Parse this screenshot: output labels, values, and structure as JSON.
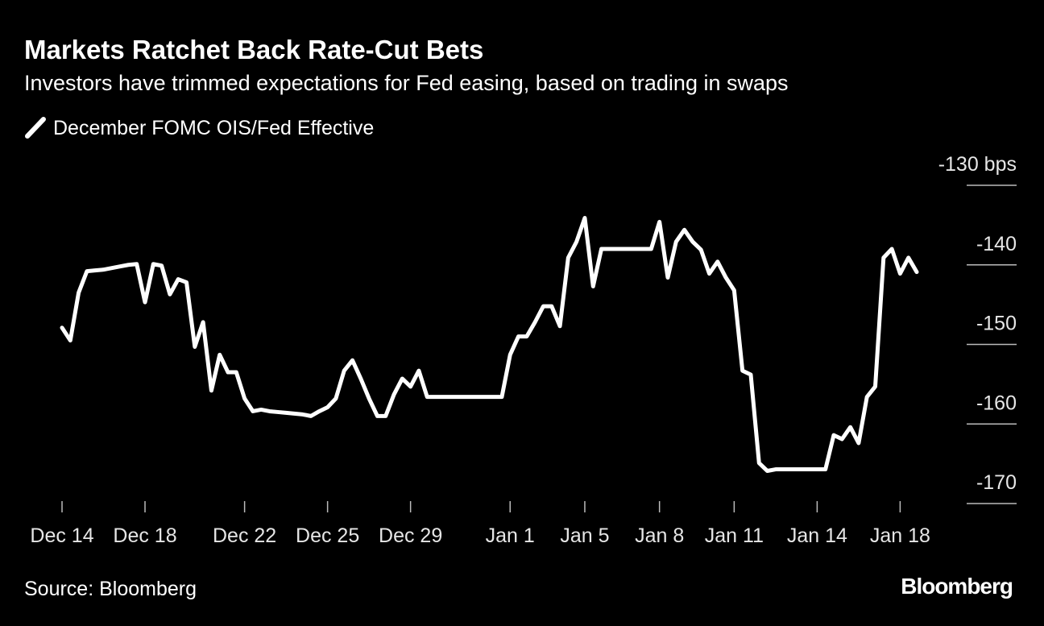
{
  "chart_data": {
    "type": "line",
    "title": "Markets Ratchet Back Rate-Cut Bets",
    "subtitle": "Investors have trimmed expectations for Fed easing, based on trading in swaps",
    "source": "Source: Bloomberg",
    "brand": "Bloomberg",
    "categories": [
      "Dec 14",
      null,
      null,
      null,
      null,
      null,
      null,
      null,
      null,
      null,
      "Dec 18",
      null,
      null,
      null,
      null,
      null,
      null,
      null,
      null,
      null,
      null,
      null,
      "Dec 22",
      null,
      null,
      null,
      null,
      null,
      null,
      null,
      null,
      null,
      "Dec 25",
      null,
      null,
      null,
      null,
      null,
      null,
      null,
      null,
      null,
      "Dec 29",
      null,
      null,
      null,
      null,
      null,
      null,
      null,
      null,
      null,
      null,
      null,
      "Jan 1",
      null,
      null,
      null,
      null,
      null,
      null,
      null,
      null,
      "Jan 5",
      null,
      null,
      null,
      null,
      null,
      null,
      null,
      null,
      "Jan 8",
      null,
      null,
      null,
      null,
      null,
      null,
      null,
      null,
      "Jan 11",
      null,
      null,
      null,
      null,
      null,
      null,
      null,
      null,
      null,
      "Jan 14",
      null,
      null,
      null,
      null,
      null,
      null,
      null,
      null,
      null,
      "Jan 18",
      null,
      null
    ],
    "series": [
      {
        "name": "December FOMC OIS/Fed Effective",
        "color": "#ffffff",
        "values": [
          -147.9,
          -149.5,
          -143.5,
          -140.8,
          -140.7,
          -140.6,
          -140.4,
          -140.2,
          -140.0,
          -139.9,
          -144.7,
          -139.9,
          -140.1,
          -143.7,
          -141.8,
          -142.2,
          -150.3,
          -147.2,
          -155.8,
          -151.3,
          -153.5,
          -153.5,
          -156.8,
          -158.4,
          -158.2,
          -158.4,
          -158.5,
          -158.6,
          -158.7,
          -158.8,
          -159.0,
          -158.4,
          -157.9,
          -156.8,
          -153.3,
          -152.0,
          -154.3,
          -156.8,
          -159.0,
          -159.0,
          -156.3,
          -154.3,
          -155.3,
          -153.3,
          -156.6,
          -156.6,
          -156.6,
          -156.6,
          -156.6,
          -156.6,
          -156.6,
          -156.6,
          -156.6,
          -156.6,
          -151.3,
          -149.0,
          -149.0,
          -147.2,
          -145.2,
          -145.2,
          -147.7,
          -139.1,
          -137.1,
          -134.1,
          -142.7,
          -138.0,
          -138.0,
          -138.0,
          -138.0,
          -138.0,
          -138.0,
          -138.0,
          -134.6,
          -141.6,
          -137.1,
          -135.6,
          -137.1,
          -138.1,
          -141.1,
          -139.6,
          -141.6,
          -143.2,
          -153.3,
          -153.8,
          -164.9,
          -165.9,
          -165.7,
          -165.7,
          -165.7,
          -165.7,
          -165.7,
          -165.7,
          -165.7,
          -161.4,
          -161.9,
          -160.4,
          -162.4,
          -156.6,
          -155.3,
          -139.1,
          -138.0,
          -141.1,
          -139.1,
          -140.9
        ]
      }
    ],
    "ylim": [
      -170,
      -130
    ],
    "yticks": [
      {
        "value": -130,
        "label": "-130 bps"
      },
      -140,
      -150,
      -160,
      -170
    ],
    "grid": true
  }
}
